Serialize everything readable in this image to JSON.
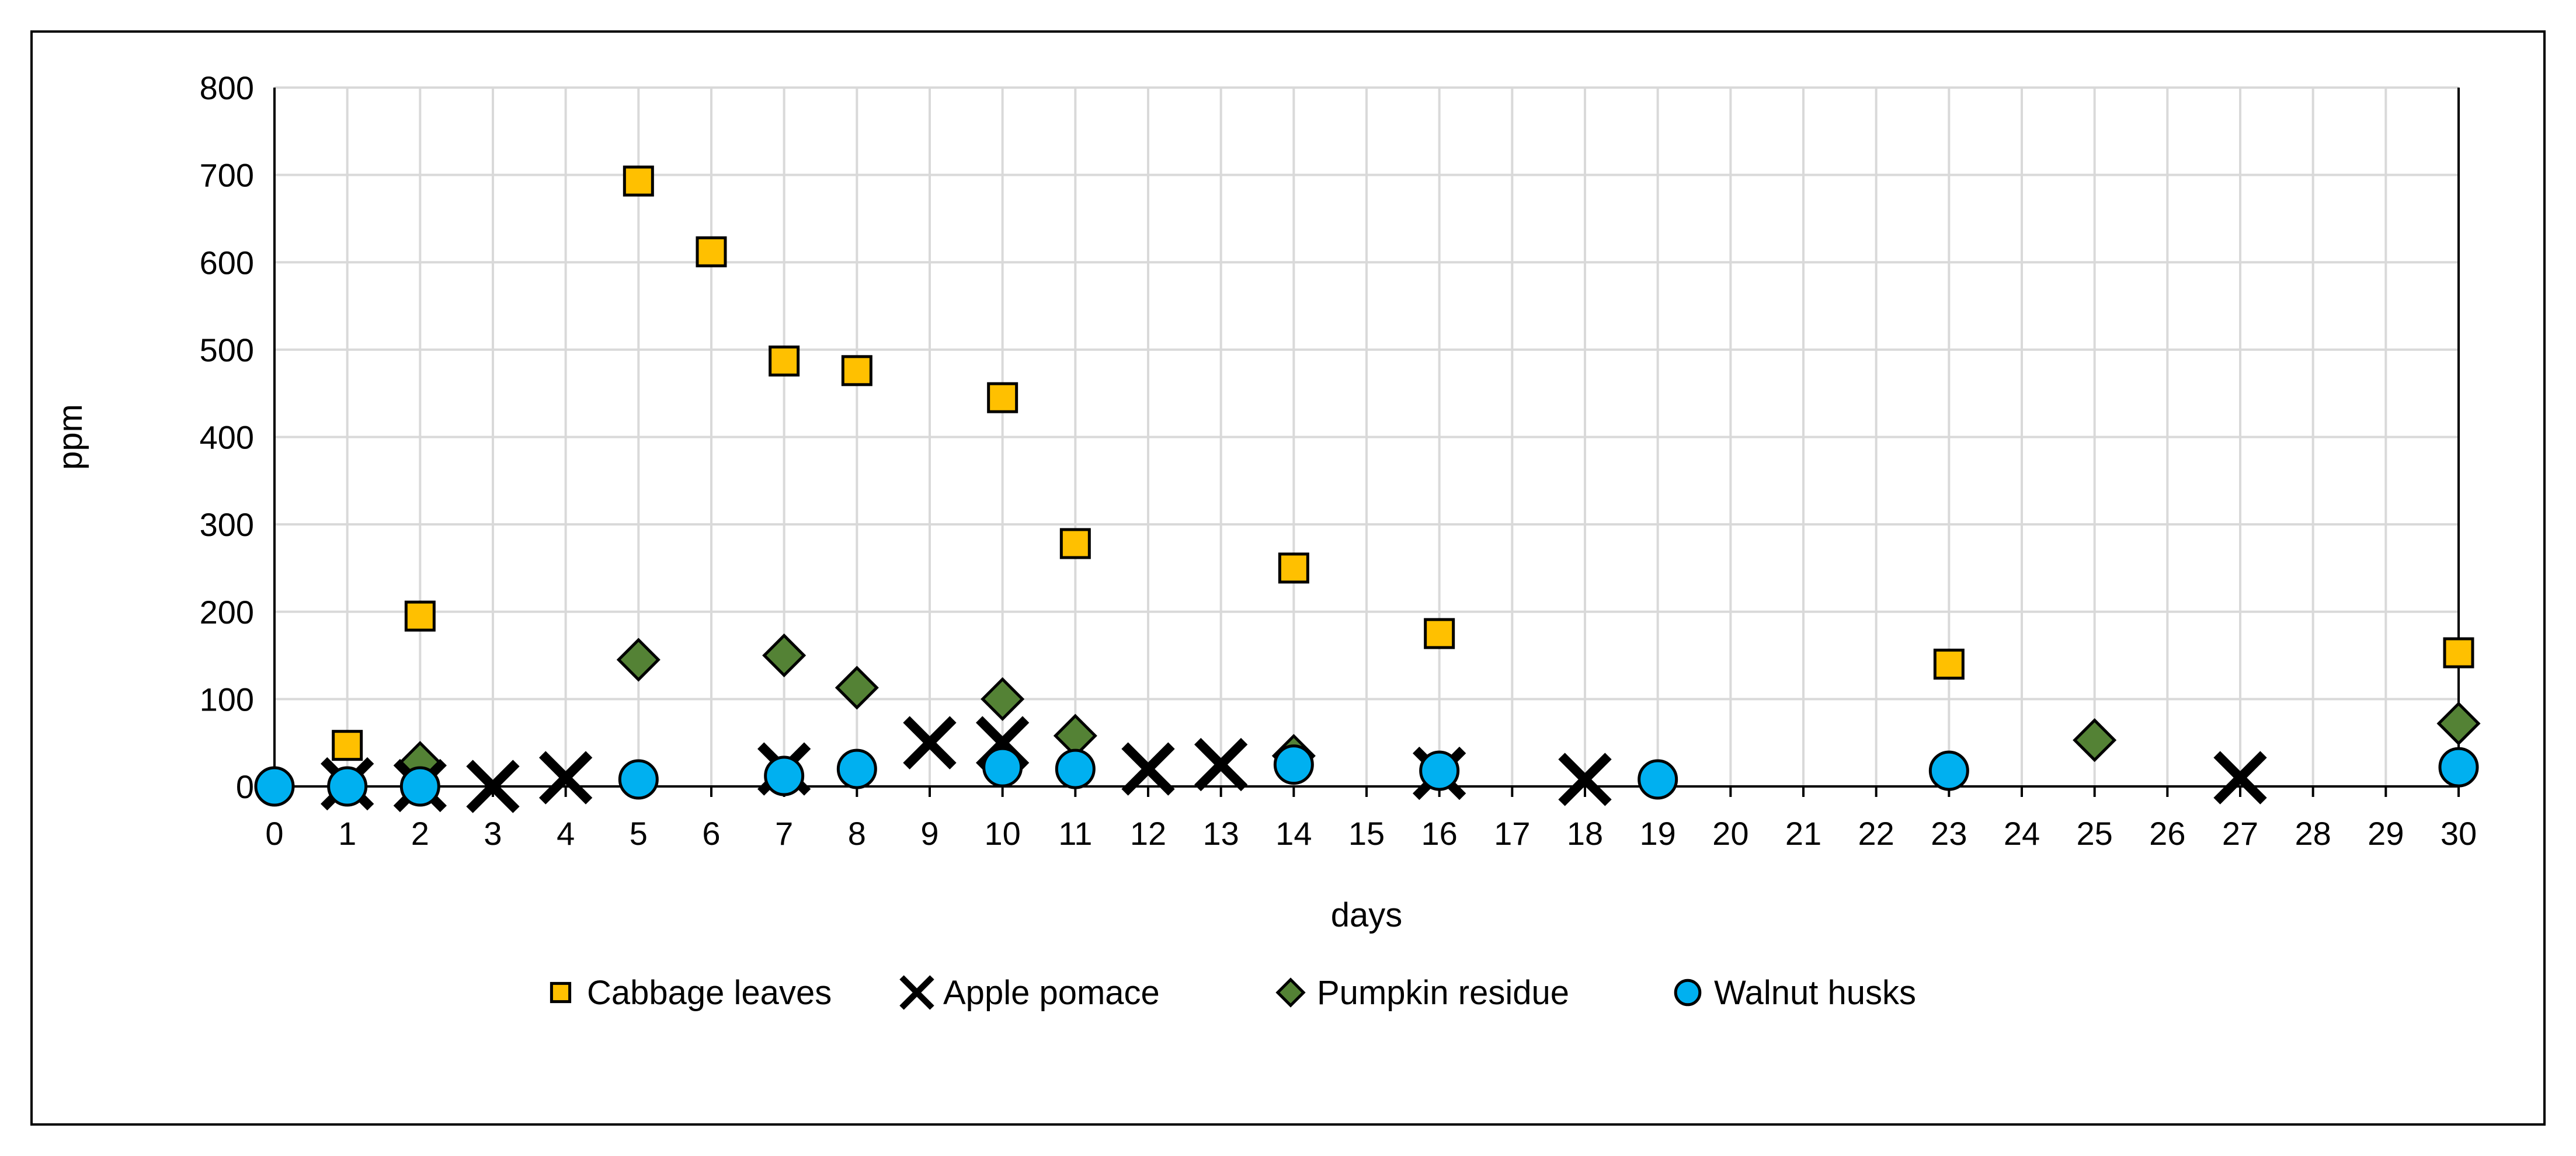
{
  "chart_data": {
    "type": "scatter",
    "title": "",
    "xlabel": "days",
    "ylabel": "ppm",
    "xlim": [
      0,
      30
    ],
    "ylim": [
      0,
      800
    ],
    "xticks": [
      0,
      1,
      2,
      3,
      4,
      5,
      6,
      7,
      8,
      9,
      10,
      11,
      12,
      13,
      14,
      15,
      16,
      17,
      18,
      19,
      20,
      21,
      22,
      23,
      24,
      25,
      26,
      27,
      28,
      29,
      30
    ],
    "yticks": [
      0,
      100,
      200,
      300,
      400,
      500,
      600,
      700,
      800
    ],
    "grid": true,
    "legend_position": "bottom",
    "series": [
      {
        "name": "Cabbage leaves",
        "marker": "square",
        "color": "#FFC000",
        "points": [
          [
            1,
            47
          ],
          [
            2,
            195
          ],
          [
            5,
            693
          ],
          [
            6,
            612
          ],
          [
            7,
            487
          ],
          [
            8,
            476
          ],
          [
            10,
            445
          ],
          [
            11,
            278
          ],
          [
            14,
            250
          ],
          [
            16,
            175
          ],
          [
            23,
            140
          ],
          [
            30,
            153
          ]
        ]
      },
      {
        "name": "Apple pomace",
        "marker": "x",
        "color": "#000000",
        "points": [
          [
            1,
            3
          ],
          [
            2,
            1
          ],
          [
            3,
            0
          ],
          [
            4,
            10
          ],
          [
            7,
            20
          ],
          [
            9,
            50
          ],
          [
            10,
            50
          ],
          [
            12,
            20
          ],
          [
            13,
            25
          ],
          [
            16,
            15
          ],
          [
            18,
            8
          ],
          [
            27,
            10
          ]
        ]
      },
      {
        "name": "Pumpkin residue",
        "marker": "diamond",
        "color": "#548235",
        "points": [
          [
            2,
            27
          ],
          [
            5,
            145
          ],
          [
            7,
            150
          ],
          [
            8,
            113
          ],
          [
            10,
            100
          ],
          [
            11,
            58
          ],
          [
            14,
            35
          ],
          [
            25,
            53
          ],
          [
            30,
            72
          ]
        ]
      },
      {
        "name": "Walnut husks",
        "marker": "circle",
        "color": "#00B0F0",
        "points": [
          [
            0,
            0
          ],
          [
            1,
            0
          ],
          [
            2,
            0
          ],
          [
            5,
            8
          ],
          [
            7,
            12
          ],
          [
            8,
            20
          ],
          [
            10,
            22
          ],
          [
            11,
            20
          ],
          [
            14,
            25
          ],
          [
            16,
            18
          ],
          [
            19,
            8
          ],
          [
            23,
            18
          ],
          [
            30,
            22
          ]
        ]
      }
    ]
  }
}
